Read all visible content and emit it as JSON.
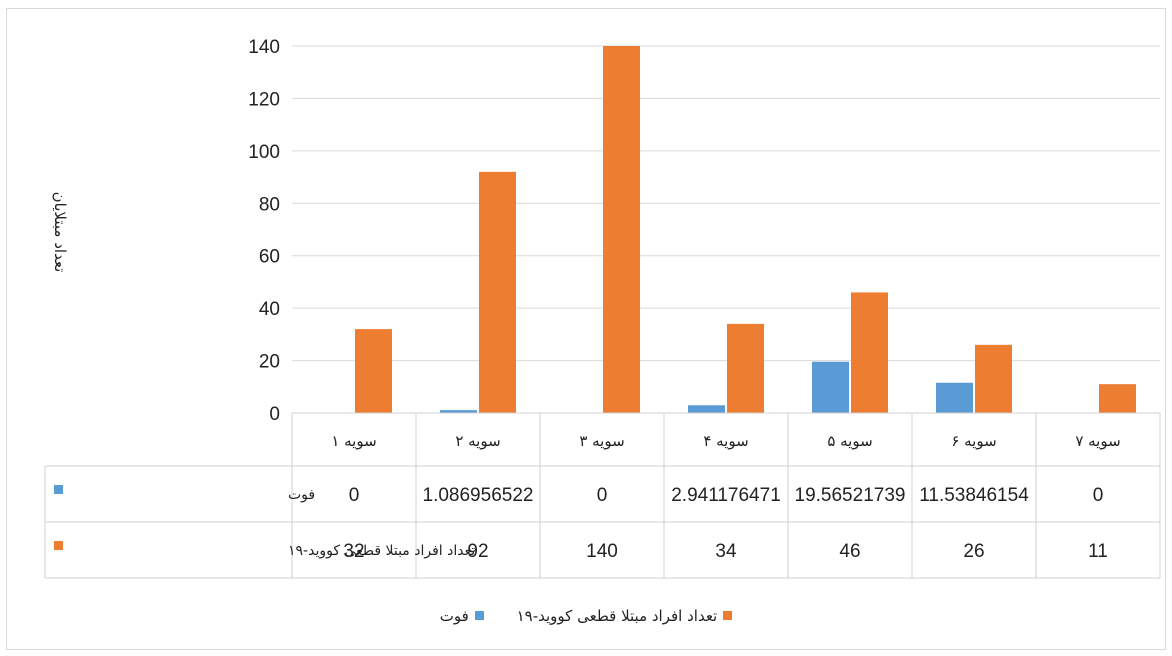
{
  "chart_data": {
    "type": "bar",
    "ylabel": "تعداد مبتلایان",
    "ylim": [
      0,
      140
    ],
    "yticks": [
      0,
      20,
      40,
      60,
      80,
      100,
      120,
      140
    ],
    "grid": true,
    "legend_position": "bottom",
    "categories": [
      "سویه ۱",
      "سویه ۲",
      "سویه ۳",
      "سویه ۴",
      "سویه ۵",
      "سویه ۶",
      "سویه ۷"
    ],
    "series": [
      {
        "name": "فوت",
        "color": "#5b9bd5",
        "values": [
          0,
          1.086956522,
          0,
          2.941176471,
          19.56521739,
          11.53846154,
          0
        ],
        "labels": [
          "0",
          "1.086956522",
          "0",
          "2.941176471",
          "19.56521739",
          "11.53846154",
          "0"
        ]
      },
      {
        "name": "تعداد افراد مبتلا قطعی کووید-۱۹",
        "color": "#ed7d31",
        "values": [
          32,
          92,
          140,
          34,
          46,
          26,
          11
        ],
        "labels": [
          "32",
          "92",
          "140",
          "34",
          "46",
          "26",
          "11"
        ]
      }
    ]
  }
}
